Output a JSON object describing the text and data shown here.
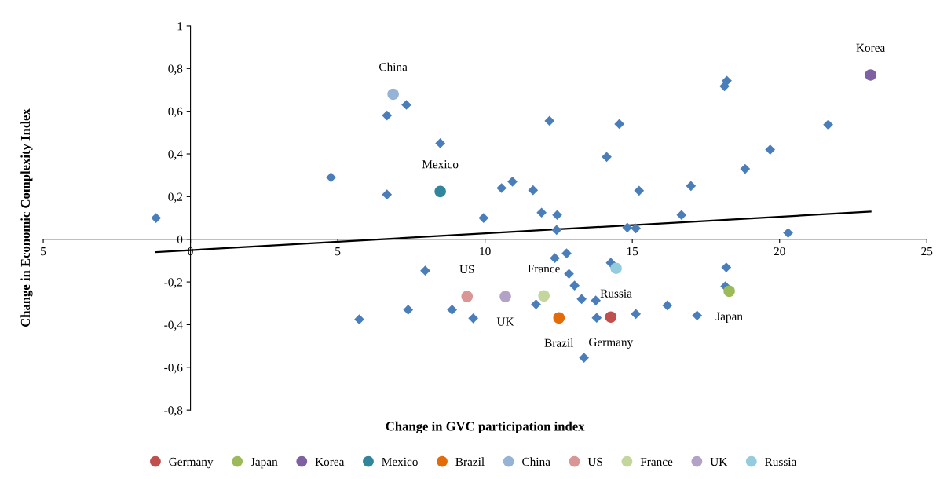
{
  "chart_data": {
    "type": "scatter",
    "xlabel": "Change in GVC participation index",
    "ylabel": "Change in Economic Complexity Index",
    "xlim": [
      -5,
      25
    ],
    "xticks": [
      {
        "value": -5,
        "label": "5"
      },
      0,
      5,
      10,
      15,
      20,
      25
    ],
    "ylim": [
      -0.8,
      1
    ],
    "yticks": [
      {
        "value": -0.8,
        "label": "-0,8"
      },
      {
        "value": -0.6,
        "label": "-0,6"
      },
      {
        "value": -0.4,
        "label": "-0,4"
      },
      {
        "value": -0.2,
        "label": "-0,2"
      },
      0,
      {
        "value": 0.2,
        "label": "0,2"
      },
      {
        "value": 0.4,
        "label": "0,4"
      },
      {
        "value": 0.6,
        "label": "0,6"
      },
      {
        "value": 0.8,
        "label": "0,8"
      },
      1
    ],
    "grid": false,
    "legend": "bottom",
    "series": [
      {
        "color": "#4a7ebb",
        "marker": "diamond",
        "x": [
          -1.17,
          4.77,
          6.67,
          7.33,
          6.67,
          8.48,
          5.73,
          7.39,
          7.97,
          8.88,
          9.6,
          9.95,
          10.56,
          10.93,
          11.63,
          11.92,
          12.19,
          12.45,
          12.43,
          12.37,
          11.73,
          12.77,
          12.85,
          13.04,
          13.28,
          13.76,
          13.79,
          13.36,
          14.13,
          14.56,
          14.27,
          14.83,
          15.12,
          15.23,
          15.12,
          16.19,
          16.67,
          16.99,
          17.2,
          18.13,
          18.21,
          18.19,
          18.16,
          18.83,
          19.68,
          20.29,
          21.65
        ],
        "values": [
          0.1,
          0.29,
          0.58,
          0.63,
          0.21,
          0.45,
          -0.375,
          -0.33,
          -0.147,
          -0.33,
          -0.37,
          0.1,
          0.24,
          0.27,
          0.23,
          0.125,
          0.555,
          0.114,
          0.044,
          -0.088,
          -0.305,
          -0.066,
          -0.162,
          -0.217,
          -0.28,
          -0.287,
          -0.368,
          -0.555,
          0.386,
          0.54,
          -0.11,
          0.055,
          0.051,
          0.228,
          -0.35,
          -0.31,
          0.114,
          0.25,
          -0.357,
          0.717,
          0.743,
          -0.132,
          -0.22,
          0.33,
          0.42,
          0.03,
          0.537
        ]
      },
      {
        "type": "line",
        "color": "#000000",
        "marker": "none",
        "x": [
          -1.17,
          23.09
        ],
        "values": [
          -0.06,
          0.13
        ]
      },
      {
        "name": "Germany",
        "color": "#c0504d",
        "marker": "circle",
        "x": [
          14.27
        ],
        "values": [
          -0.364
        ]
      },
      {
        "name": "Japan",
        "color": "#9bbb59",
        "marker": "circle",
        "x": [
          18.29
        ],
        "values": [
          -0.243
        ]
      },
      {
        "name": "Korea",
        "color": "#7f60a2",
        "marker": "circle",
        "x": [
          23.09
        ],
        "values": [
          0.77
        ]
      },
      {
        "name": "Mexico",
        "color": "#31859c",
        "marker": "circle",
        "x": [
          8.48
        ],
        "values": [
          0.224
        ]
      },
      {
        "name": "Brazil",
        "color": "#e36c09",
        "marker": "circle",
        "x": [
          12.51
        ],
        "values": [
          -0.368
        ]
      },
      {
        "name": "China",
        "color": "#95b3d7",
        "marker": "circle",
        "x": [
          6.88
        ],
        "values": [
          0.68
        ]
      },
      {
        "name": "US",
        "color": "#d99694",
        "marker": "circle",
        "x": [
          9.39
        ],
        "values": [
          -0.268
        ]
      },
      {
        "name": "France",
        "color": "#c3d69b",
        "marker": "circle",
        "x": [
          12.0
        ],
        "values": [
          -0.265
        ]
      },
      {
        "name": "UK",
        "color": "#b3a2c7",
        "marker": "circle",
        "x": [
          10.69
        ],
        "values": [
          -0.268
        ]
      },
      {
        "name": "Russia",
        "color": "#93cddd",
        "marker": "circle",
        "x": [
          14.45
        ],
        "values": [
          -0.136
        ]
      }
    ],
    "annotations": [
      {
        "text": "China",
        "x": 6.88,
        "y": 0.68
      },
      {
        "text": "Korea",
        "x": 23.09,
        "y": 0.77
      },
      {
        "text": "Mexico",
        "x": 8.48,
        "y": 0.224
      },
      {
        "text": "US",
        "x": 9.39,
        "y": -0.268
      },
      {
        "text": "UK",
        "x": 10.69,
        "y": -0.268
      },
      {
        "text": "France",
        "x": 12.0,
        "y": -0.265
      },
      {
        "text": "Brazil",
        "x": 12.51,
        "y": -0.368
      },
      {
        "text": "Germany",
        "x": 14.27,
        "y": -0.364
      },
      {
        "text": "Russia",
        "x": 14.45,
        "y": -0.136
      },
      {
        "text": "Japan",
        "x": 18.29,
        "y": -0.243
      }
    ]
  }
}
